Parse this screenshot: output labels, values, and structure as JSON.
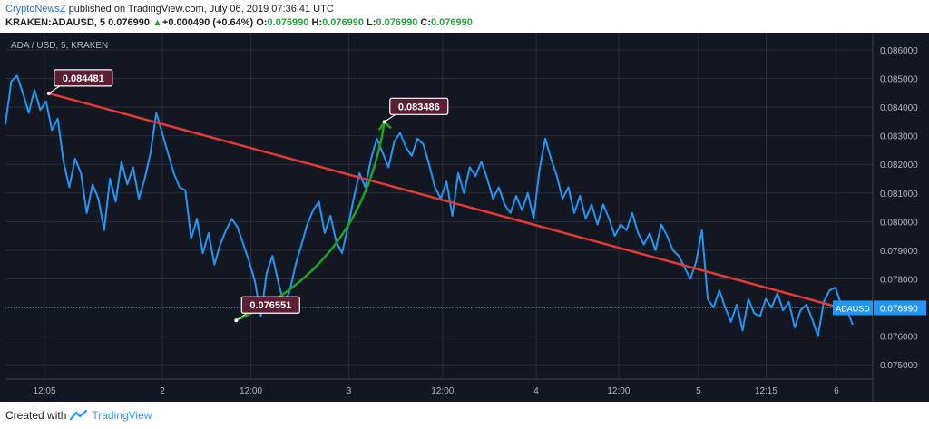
{
  "header": {
    "author": "CryptoNewsZ",
    "published_text": "published on TradingView.com, July 06, 2019 07:36:41 UTC",
    "symbol": "KRAKEN:ADAUSD, 5",
    "last": "0.076990",
    "change_arrow": "▲",
    "change": "+0.000490 (+0.64%)",
    "o_label": "O:",
    "o_value": "0.076990",
    "h_label": "H:",
    "h_value": "0.076990",
    "l_label": "L:",
    "l_value": "0.076990",
    "c_label": "C:",
    "c_value": "0.076990"
  },
  "footer": {
    "created_with": "Created with",
    "brand": "TradingView"
  },
  "chart_data": {
    "type": "line",
    "title": "ADA / USD, 5, KRAKEN",
    "ylim": [
      0.0745,
      0.0866
    ],
    "y_ticks": [
      "0.086000",
      "0.085000",
      "0.084000",
      "0.083000",
      "0.082000",
      "0.081000",
      "0.080000",
      "0.079000",
      "0.078000",
      "0.077000",
      "0.076000",
      "0.075000"
    ],
    "x_ticks": [
      {
        "label": "12:05",
        "t": 0.045
      },
      {
        "label": "2",
        "t": 0.181
      },
      {
        "label": "12:00",
        "t": 0.283
      },
      {
        "label": "3",
        "t": 0.396
      },
      {
        "label": "12:00",
        "t": 0.504
      },
      {
        "label": "4",
        "t": 0.612
      },
      {
        "label": "12:00",
        "t": 0.707
      },
      {
        "label": "5",
        "t": 0.799
      },
      {
        "label": "12:15",
        "t": 0.877
      },
      {
        "label": "6",
        "t": 0.958
      }
    ],
    "series": [
      {
        "name": "ADAUSD",
        "color": "#2196f3",
        "values": [
          0.0834,
          0.0849,
          0.0851,
          0.0845,
          0.0838,
          0.0846,
          0.0839,
          0.0842,
          0.0832,
          0.0836,
          0.0821,
          0.0812,
          0.0822,
          0.0817,
          0.0803,
          0.0813,
          0.0808,
          0.0797,
          0.0815,
          0.0807,
          0.0821,
          0.0813,
          0.0819,
          0.0808,
          0.0815,
          0.0824,
          0.0838,
          0.0831,
          0.0824,
          0.0817,
          0.0812,
          0.0811,
          0.0794,
          0.0801,
          0.0789,
          0.0796,
          0.0785,
          0.0792,
          0.0797,
          0.0801,
          0.0798,
          0.0792,
          0.0786,
          0.0779,
          0.0767,
          0.0782,
          0.0788,
          0.0779,
          0.0771,
          0.0776,
          0.0785,
          0.0792,
          0.0799,
          0.0804,
          0.0807,
          0.0796,
          0.0802,
          0.0793,
          0.0789,
          0.0798,
          0.0808,
          0.0817,
          0.0812,
          0.0822,
          0.0829,
          0.0824,
          0.0819,
          0.0828,
          0.0831,
          0.0826,
          0.0823,
          0.0829,
          0.0827,
          0.082,
          0.0812,
          0.0808,
          0.0814,
          0.0802,
          0.0817,
          0.081,
          0.0819,
          0.0816,
          0.0821,
          0.0815,
          0.0808,
          0.0812,
          0.0806,
          0.0803,
          0.0809,
          0.0804,
          0.081,
          0.0801,
          0.0818,
          0.0829,
          0.0822,
          0.0816,
          0.0808,
          0.0812,
          0.0803,
          0.0809,
          0.0801,
          0.0806,
          0.0799,
          0.0806,
          0.0801,
          0.0795,
          0.0799,
          0.0797,
          0.0803,
          0.0796,
          0.0792,
          0.0796,
          0.079,
          0.0799,
          0.0795,
          0.079,
          0.0788,
          0.0784,
          0.078,
          0.0786,
          0.0797,
          0.0773,
          0.077,
          0.0776,
          0.077,
          0.0765,
          0.0771,
          0.0762,
          0.0773,
          0.0768,
          0.0767,
          0.0773,
          0.077,
          0.0775,
          0.0769,
          0.0772,
          0.0763,
          0.0769,
          0.0771,
          0.0766,
          0.076,
          0.0772,
          0.0776,
          0.0777,
          0.0771,
          0.0769,
          0.0764
        ]
      }
    ],
    "trend_line": {
      "start_t": 0.05,
      "start_value": 0.084481,
      "end_t": 0.963,
      "end_value": 0.07699,
      "color": "#e53935"
    },
    "arc": {
      "start_t": 0.266,
      "start_value": 0.076551,
      "end_t": 0.437,
      "end_value": 0.083486,
      "color": "#1ea51e"
    },
    "annotations": [
      {
        "text": "0.084481",
        "t": 0.05,
        "value": 0.084481
      },
      {
        "text": "0.083486",
        "t": 0.437,
        "value": 0.083486
      },
      {
        "text": "0.076551",
        "t": 0.266,
        "value": 0.076551
      }
    ],
    "last_label": {
      "name": "ADAUSD",
      "value": "0.076990",
      "numeric": 0.07699
    },
    "colors": {
      "background": "#131722",
      "grid": "#2a2e39",
      "axis_text": "#b2b5be",
      "price_line": "#2196f3"
    }
  }
}
